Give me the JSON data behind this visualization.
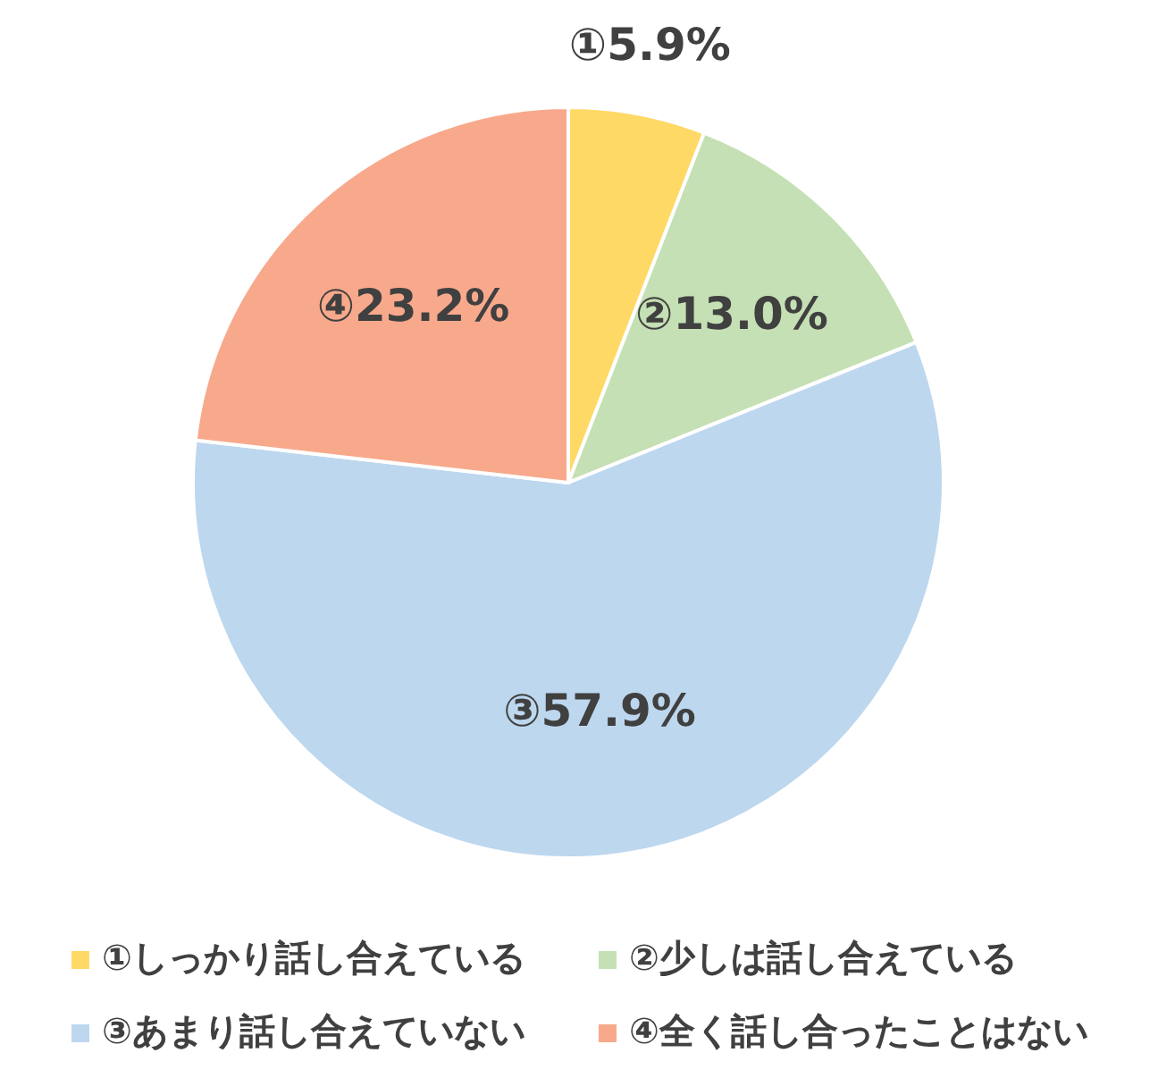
{
  "chart_data": {
    "type": "pie",
    "categories": [
      "①しっかり話し合えている",
      "②少しは話し合えている",
      "③あまり話し合えていない",
      "④全く話し合ったことはない"
    ],
    "values": [
      5.9,
      13.0,
      57.9,
      23.2
    ],
    "colors": [
      "#ffd966",
      "#c5e0b4",
      "#bdd7ee",
      "#f8a98c"
    ],
    "value_labels": [
      "①5.9%",
      "②13.0%",
      "③57.9%",
      "④23.2%"
    ],
    "legend": "bottom"
  }
}
